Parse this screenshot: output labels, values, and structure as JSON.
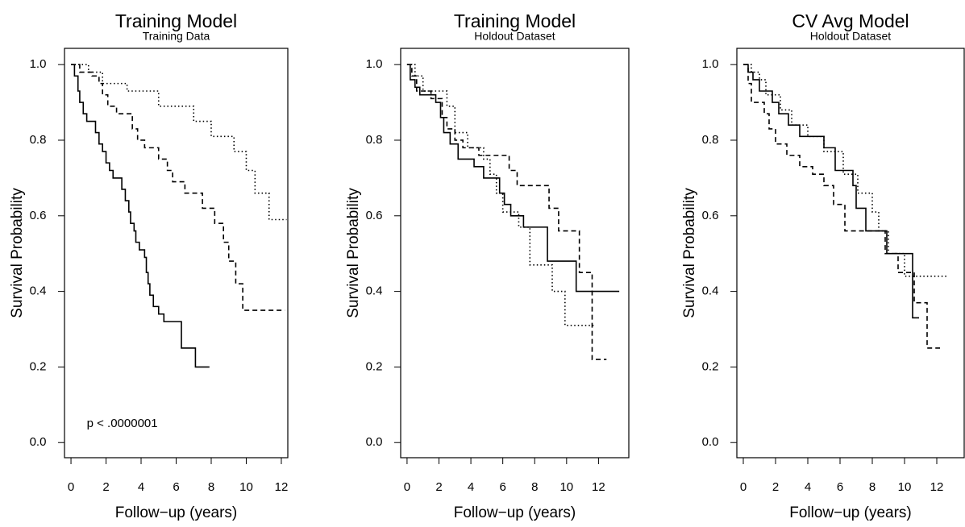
{
  "chart_data": [
    {
      "type": "step",
      "title": "Training Model",
      "subtitle": "Training Data",
      "x_label": "Follow−up (years)",
      "y_label": "Survival Probability",
      "annotation": "p < .0000001",
      "annotation_x": 0.9,
      "annotation_y": 0.05,
      "xlim": [
        -0.37,
        12.37
      ],
      "ylim": [
        -0.04,
        1.043
      ],
      "xticks": [
        0,
        2,
        4,
        6,
        8,
        10,
        12
      ],
      "yticks": [
        {
          "value": 0,
          "label": "0.0"
        },
        0.2,
        0.4,
        0.6,
        0.8,
        {
          "value": 1,
          "label": "1.0"
        }
      ],
      "series": [
        {
          "color": "#000000",
          "line_style": "solid",
          "x": [
            0,
            0.2,
            0.4,
            0.5,
            0.7,
            0.9,
            1.4,
            1.6,
            1.8,
            2.0,
            2.2,
            2.4,
            2.9,
            3.1,
            3.3,
            3.4,
            3.6,
            3.7,
            3.9,
            4.2,
            4.3,
            4.4,
            4.5,
            4.7,
            5.0,
            5.3,
            6.3,
            7.1,
            7.9
          ],
          "values": [
            1.0,
            0.97,
            0.93,
            0.9,
            0.87,
            0.85,
            0.82,
            0.79,
            0.77,
            0.74,
            0.72,
            0.7,
            0.67,
            0.64,
            0.61,
            0.58,
            0.56,
            0.53,
            0.51,
            0.49,
            0.45,
            0.42,
            0.39,
            0.36,
            0.34,
            0.32,
            0.25,
            0.2,
            0.2
          ]
        },
        {
          "color": "#000000",
          "line_style": "dashed",
          "x": [
            0,
            0.5,
            1.2,
            1.6,
            1.8,
            2.1,
            2.6,
            3.5,
            3.8,
            4.2,
            5.0,
            5.5,
            5.8,
            6.5,
            7.5,
            8.2,
            8.7,
            9.0,
            9.4,
            9.8,
            12.2
          ],
          "values": [
            1.0,
            0.98,
            0.97,
            0.95,
            0.92,
            0.89,
            0.87,
            0.83,
            0.8,
            0.78,
            0.75,
            0.72,
            0.69,
            0.66,
            0.62,
            0.58,
            0.53,
            0.48,
            0.42,
            0.35,
            0.35
          ]
        },
        {
          "color": "#000000",
          "line_style": "dotted",
          "x": [
            0,
            1.0,
            1.8,
            3.2,
            5.0,
            7.0,
            8.0,
            9.3,
            10.0,
            10.5,
            11.3,
            12.3
          ],
          "values": [
            1.0,
            0.98,
            0.95,
            0.93,
            0.89,
            0.85,
            0.81,
            0.77,
            0.72,
            0.66,
            0.59,
            0.59
          ]
        }
      ]
    },
    {
      "type": "step",
      "title": "Training Model",
      "subtitle": "Holdout Dataset",
      "x_label": "Follow−up (years)",
      "y_label": "Survival Probability",
      "xlim": [
        -0.4,
        13.9
      ],
      "ylim": [
        -0.04,
        1.043
      ],
      "xticks": [
        0,
        2,
        4,
        6,
        8,
        10,
        12
      ],
      "yticks": [
        {
          "value": 0,
          "label": "0.0"
        },
        0.2,
        0.4,
        0.6,
        0.8,
        {
          "value": 1,
          "label": "1.0"
        }
      ],
      "series": [
        {
          "color": "#000000",
          "line_style": "solid",
          "x": [
            0,
            0.2,
            0.5,
            0.8,
            1.8,
            2.1,
            2.3,
            2.7,
            3.2,
            4.2,
            4.8,
            5.8,
            6.1,
            6.5,
            7.3,
            8.8,
            10.6,
            13.3
          ],
          "values": [
            1.0,
            0.96,
            0.94,
            0.92,
            0.9,
            0.86,
            0.82,
            0.79,
            0.75,
            0.73,
            0.7,
            0.66,
            0.63,
            0.6,
            0.57,
            0.48,
            0.4,
            0.4
          ]
        },
        {
          "color": "#000000",
          "line_style": "dashed",
          "x": [
            0,
            0.3,
            0.6,
            1.5,
            2.2,
            2.5,
            3.0,
            3.5,
            4.5,
            6.4,
            6.9,
            8.9,
            9.5,
            10.8,
            11.6,
            12.5
          ],
          "values": [
            1.0,
            0.97,
            0.93,
            0.91,
            0.86,
            0.83,
            0.8,
            0.78,
            0.76,
            0.72,
            0.68,
            0.62,
            0.56,
            0.45,
            0.22,
            0.22
          ]
        },
        {
          "color": "#000000",
          "line_style": "dotted",
          "x": [
            0,
            0.5,
            1.0,
            2.5,
            3.0,
            3.8,
            4.8,
            5.2,
            5.6,
            6.0,
            7.0,
            7.7,
            9.1,
            9.9,
            11.8
          ],
          "values": [
            1.0,
            0.97,
            0.93,
            0.89,
            0.82,
            0.78,
            0.75,
            0.71,
            0.66,
            0.61,
            0.57,
            0.47,
            0.4,
            0.31,
            0.31
          ]
        }
      ]
    },
    {
      "type": "step",
      "title": "CV Avg Model",
      "subtitle": "Holdout Dataset",
      "x_label": "Follow−up (years)",
      "y_label": "Survival Probability",
      "xlim": [
        -0.4,
        13.7
      ],
      "ylim": [
        -0.04,
        1.043
      ],
      "xticks": [
        0,
        2,
        4,
        6,
        8,
        10,
        12
      ],
      "yticks": [
        {
          "value": 0,
          "label": "0.0"
        },
        0.2,
        0.4,
        0.6,
        0.8,
        {
          "value": 1,
          "label": "1.0"
        }
      ],
      "series": [
        {
          "color": "#000000",
          "line_style": "solid",
          "x": [
            0,
            0.3,
            0.6,
            1.0,
            1.8,
            2.2,
            2.8,
            3.5,
            5.0,
            5.7,
            6.8,
            7.0,
            7.6,
            8.9,
            10.5,
            10.9
          ],
          "values": [
            1.0,
            0.98,
            0.96,
            0.93,
            0.9,
            0.87,
            0.84,
            0.81,
            0.78,
            0.72,
            0.68,
            0.62,
            0.56,
            0.5,
            0.33,
            0.33
          ]
        },
        {
          "color": "#000000",
          "line_style": "dashed",
          "x": [
            0,
            0.3,
            0.5,
            1.3,
            1.6,
            2.0,
            2.7,
            3.5,
            4.3,
            5.0,
            5.6,
            6.3,
            8.8,
            9.6,
            10.6,
            11.4,
            12.2
          ],
          "values": [
            1.0,
            0.95,
            0.9,
            0.87,
            0.83,
            0.79,
            0.76,
            0.73,
            0.71,
            0.68,
            0.63,
            0.56,
            0.5,
            0.45,
            0.37,
            0.25,
            0.25
          ]
        },
        {
          "color": "#000000",
          "line_style": "dotted",
          "x": [
            0,
            0.5,
            1.0,
            1.4,
            2.3,
            3.0,
            4.0,
            5.0,
            6.2,
            7.1,
            8.0,
            8.4,
            9.0,
            10.0,
            12.7
          ],
          "values": [
            1.0,
            0.98,
            0.96,
            0.92,
            0.88,
            0.84,
            0.81,
            0.77,
            0.71,
            0.66,
            0.61,
            0.56,
            0.5,
            0.44,
            0.44
          ]
        }
      ]
    }
  ]
}
